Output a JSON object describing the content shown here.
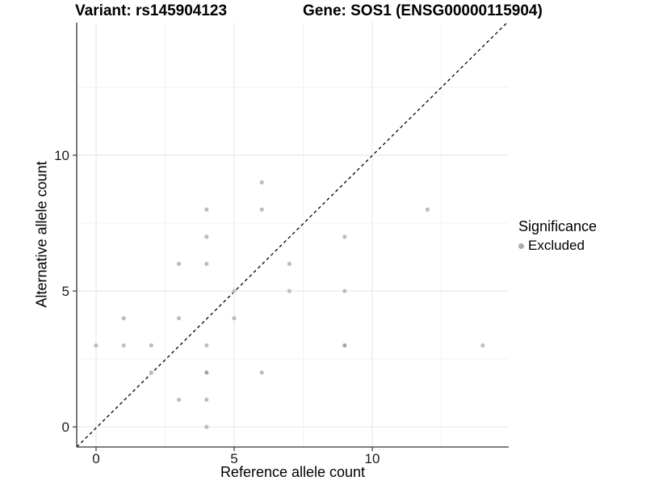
{
  "header": {
    "left_title": "Variant: rs145904123",
    "right_title": "Gene: SOS1 (ENSG00000115904)"
  },
  "axes": {
    "x_label": "Reference allele count",
    "y_label": "Alternative allele count"
  },
  "legend": {
    "title": "Significance",
    "items": [
      {
        "label": "Excluded",
        "color": "#ababab"
      }
    ]
  },
  "colors": {
    "point": "#bdbdbd",
    "point_overplotted": "#a3a3a3",
    "grid_major": "#e7e7e7",
    "grid_minor": "#f1f1f1",
    "axis_line": "#333333",
    "tick_label": "#1a1a1a",
    "reference_line": "#000000",
    "background": "#ffffff"
  },
  "chart_data": {
    "type": "scatter",
    "title_left": "Variant: rs145904123",
    "title_right": "Gene: SOS1 (ENSG00000115904)",
    "xlabel": "Reference allele count",
    "ylabel": "Alternative allele count",
    "xlim": [
      -0.7,
      14.94
    ],
    "ylim": [
      -0.74,
      14.88
    ],
    "x_ticks": [
      0,
      5,
      10
    ],
    "y_ticks": [
      0,
      5,
      10
    ],
    "x_minor_gridlines": [
      2.5,
      7.5,
      12.5
    ],
    "y_minor_gridlines": [
      2.5,
      7.5,
      12.5
    ],
    "grid": true,
    "legend_position": "right",
    "series": [
      {
        "name": "Excluded",
        "color": "#bdbdbd",
        "points": [
          [
            0,
            3
          ],
          [
            1,
            3
          ],
          [
            1,
            4
          ],
          [
            2,
            2
          ],
          [
            2,
            3
          ],
          [
            3,
            1
          ],
          [
            3,
            4
          ],
          [
            3,
            6
          ],
          [
            4,
            0
          ],
          [
            4,
            1
          ],
          [
            4,
            2
          ],
          [
            4,
            3
          ],
          [
            4,
            6
          ],
          [
            4,
            7
          ],
          [
            4,
            8
          ],
          [
            5,
            4
          ],
          [
            5,
            5
          ],
          [
            6,
            2
          ],
          [
            6,
            8
          ],
          [
            6,
            9
          ],
          [
            7,
            5
          ],
          [
            7,
            6
          ],
          [
            9,
            3
          ],
          [
            9,
            5
          ],
          [
            9,
            7
          ],
          [
            12,
            8
          ],
          [
            14,
            3
          ]
        ]
      }
    ],
    "overplotted_points": [
      [
        4,
        2
      ],
      [
        9,
        3
      ]
    ],
    "reference_line": {
      "type": "identity y=x",
      "style": "dashed",
      "color": "#000000"
    }
  }
}
